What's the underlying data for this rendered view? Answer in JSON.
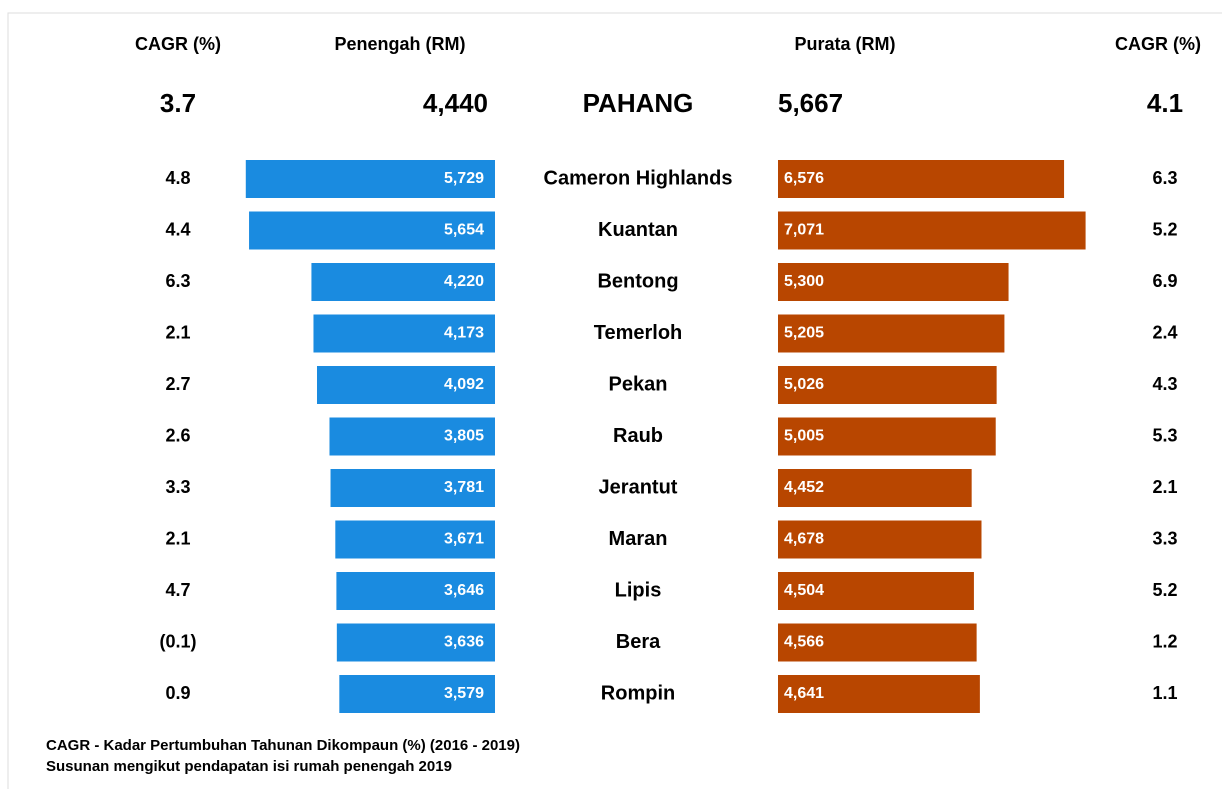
{
  "chart_data": {
    "type": "bar",
    "cagr_header": "CAGR (%)",
    "total_category": "PAHANG",
    "categories": [
      "Cameron Highlands",
      "Kuantan",
      "Bentong",
      "Temerloh",
      "Pekan",
      "Raub",
      "Jerantut",
      "Maran",
      "Lipis",
      "Bera",
      "Rompin"
    ],
    "series": [
      {
        "name": "Penengah (RM)",
        "color": "#1a8be0",
        "values": [
          5729,
          5654,
          4220,
          4173,
          4092,
          3805,
          3781,
          3671,
          3646,
          3636,
          3579
        ],
        "value_labels": [
          "5,729",
          "5,654",
          "4,220",
          "4,173",
          "4,092",
          "3,805",
          "3,781",
          "3,671",
          "3,646",
          "3,636",
          "3,579"
        ],
        "cagr": [
          4.8,
          4.4,
          6.3,
          2.1,
          2.7,
          2.6,
          3.3,
          2.1,
          4.7,
          -0.1,
          0.9
        ],
        "cagr_labels": [
          "4.8",
          "4.4",
          "6.3",
          "2.1",
          "2.7",
          "2.6",
          "3.3",
          "2.1",
          "4.7",
          "(0.1)",
          "0.9"
        ],
        "total": 4440,
        "total_label": "4,440",
        "total_cagr": 3.7
      },
      {
        "name": "Purata (RM)",
        "color": "#b84600",
        "values": [
          6576,
          7071,
          5300,
          5205,
          5026,
          5005,
          4452,
          4678,
          4504,
          4566,
          4641
        ],
        "value_labels": [
          "6,576",
          "7,071",
          "5,300",
          "5,205",
          "5,026",
          "5,005",
          "4,452",
          "4,678",
          "4,504",
          "4,566",
          "4,641"
        ],
        "cagr": [
          6.3,
          5.2,
          6.9,
          2.4,
          4.3,
          5.3,
          2.1,
          3.3,
          5.2,
          1.2,
          1.1
        ],
        "total": 5667,
        "total_label": "5,667",
        "total_cagr": 4.1
      }
    ],
    "notes": [
      "CAGR - Kadar Pertumbuhan Tahunan Dikompaun (%) (2016 -  2019)",
      "Susunan mengikut pendapatan isi rumah penengah 2019"
    ]
  }
}
